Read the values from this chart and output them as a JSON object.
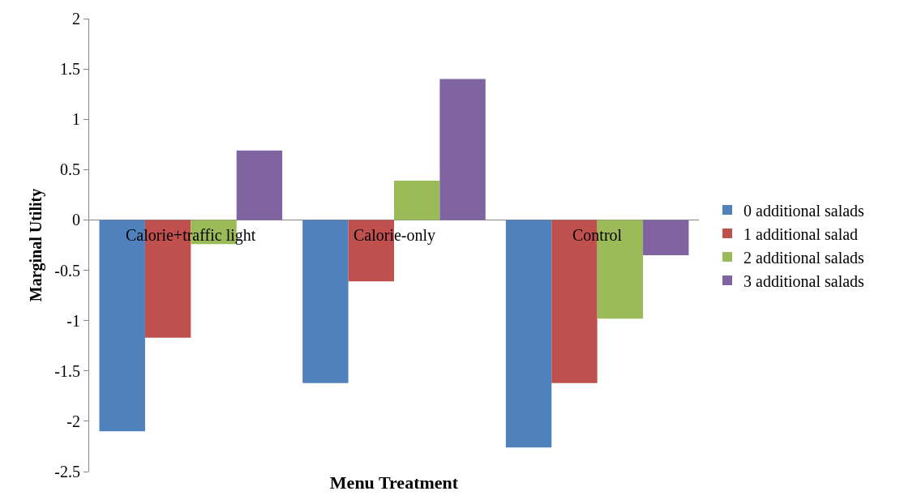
{
  "chart_data": {
    "type": "bar",
    "xlabel": "Menu Treatment",
    "ylabel": "Marginal Utility",
    "categories": [
      "Calorie+traffic light",
      "Calorie-only",
      "Control"
    ],
    "series": [
      {
        "name": "0 additional salads",
        "color": "#4f81bd",
        "values": [
          -2.1,
          -1.62,
          -2.26
        ]
      },
      {
        "name": "1 additional salad",
        "color": "#c0504d",
        "values": [
          -1.17,
          -0.61,
          -1.62
        ]
      },
      {
        "name": "2 additional salads",
        "color": "#9bbb59",
        "values": [
          -0.24,
          0.39,
          -0.98
        ]
      },
      {
        "name": "3 additional salads",
        "color": "#8064a2",
        "values": [
          0.69,
          1.4,
          -0.35
        ]
      }
    ],
    "ylim": [
      -2.5,
      2
    ],
    "yticks": [
      -2.5,
      -2,
      -1.5,
      -1,
      -0.5,
      0,
      0.5,
      1,
      1.5,
      2
    ],
    "legend": "right"
  }
}
